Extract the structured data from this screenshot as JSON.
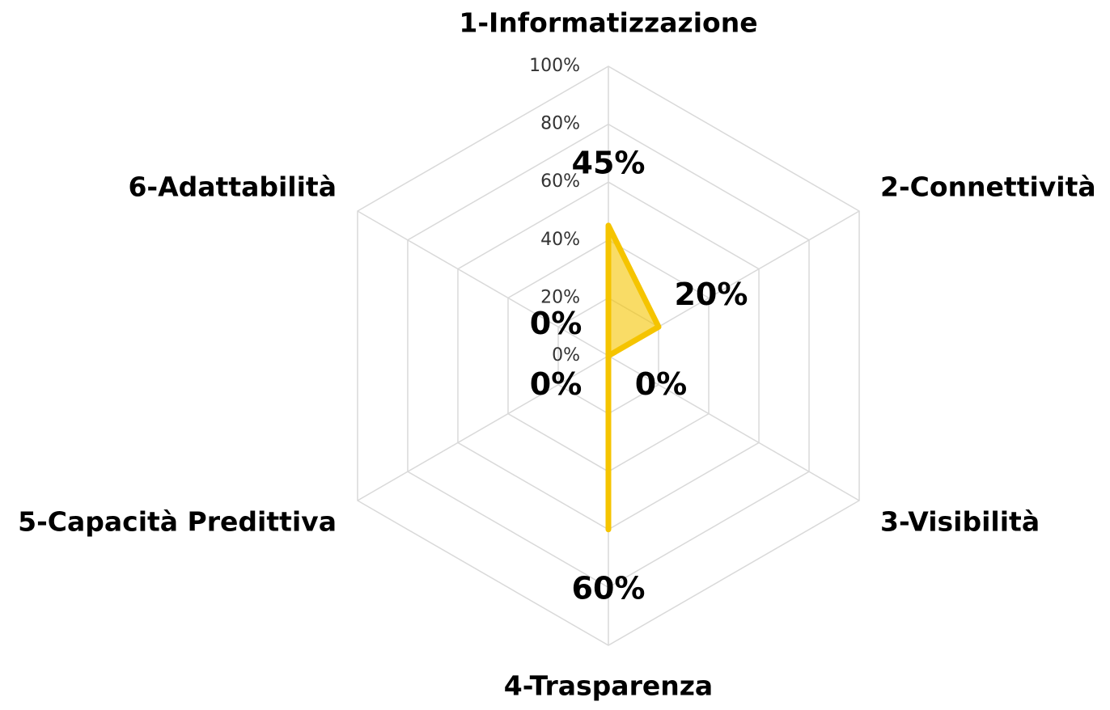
{
  "chart_data": {
    "type": "radar",
    "categories": [
      "1-Informatizzazione",
      "2-Connettività",
      "3-Visibilità",
      "4-Trasparenza",
      "5-Capacità Predittiva",
      "6-Adattabilità"
    ],
    "values": [
      45,
      20,
      0,
      60,
      0,
      0
    ],
    "value_labels": [
      "45%",
      "20%",
      "0%",
      "60%",
      "0%",
      "0%"
    ],
    "color": "#f5c400",
    "ylim": [
      0,
      100
    ],
    "yticks": [
      {
        "value": 0,
        "label": "0%"
      },
      {
        "value": 20,
        "label": "20%"
      },
      {
        "value": 40,
        "label": "40%"
      },
      {
        "value": 60,
        "label": "60%"
      },
      {
        "value": 80,
        "label": "80%"
      },
      {
        "value": 100,
        "label": "100%"
      }
    ],
    "grid": true
  }
}
